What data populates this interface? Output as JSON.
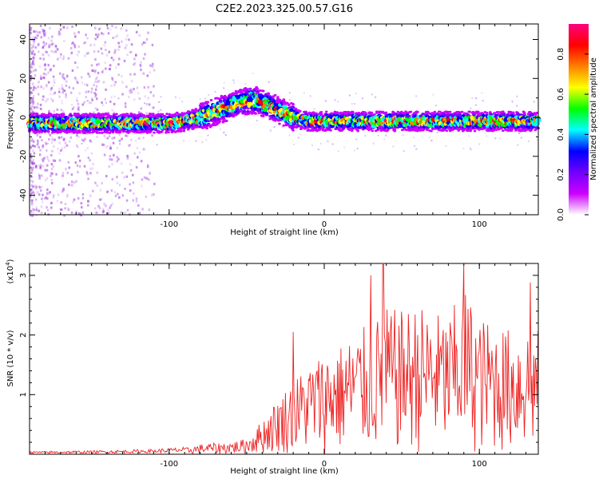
{
  "title": "C2E2.2023.325.00.57.G16",
  "chart_data": [
    {
      "type": "heatmap",
      "xlabel": "Height of straight line (km)",
      "ylabel": "Frequency (Hz)",
      "xlim": [
        -190,
        138
      ],
      "ylim": [
        -50,
        48
      ],
      "xticks": [
        -100,
        0,
        100
      ],
      "yticks": [
        -40,
        -20,
        0,
        20,
        40
      ],
      "colorbar": {
        "label": "Normalized spectral amplitude",
        "range": [
          0,
          0.95
        ],
        "ticks": [
          "0.0",
          "0.2",
          "0.4",
          "0.6",
          "0.8"
        ],
        "tick_values": [
          0.0,
          0.2,
          0.4,
          0.6,
          0.8
        ],
        "colors": [
          "#ffffff",
          "#cc00ff",
          "#7000ff",
          "#0000ff",
          "#00ffff",
          "#00ff00",
          "#ffff00",
          "#ff8000",
          "#ff0000",
          "#ff0080"
        ]
      },
      "ridge": {
        "x": [
          -190,
          -150,
          -120,
          -100,
          -90,
          -80,
          -70,
          -60,
          -52,
          -45,
          -38,
          -30,
          -20,
          -10,
          0,
          20,
          50,
          80,
          110,
          138
        ],
        "y": [
          -3,
          -3,
          -3,
          -3,
          -2,
          0,
          3,
          6,
          8,
          9,
          7,
          4,
          0,
          -2,
          -2,
          -2,
          -2,
          -2,
          -2,
          -2
        ]
      }
    },
    {
      "type": "line",
      "xlabel": "Height of straight line (km)",
      "ylabel": "SNR (10 * v/v)",
      "y_multiplier": "(x10",
      "y_multiplier_exp": "4",
      "y_multiplier_close": ")",
      "xlim": [
        -190,
        138
      ],
      "ylim": [
        0,
        3.2
      ],
      "xticks": [
        -100,
        0,
        100
      ],
      "yticks": [
        1,
        2,
        3
      ],
      "color": "#ee2222",
      "envelope": {
        "x": [
          -190,
          -150,
          -110,
          -90,
          -80,
          -60,
          -50,
          -40,
          -30,
          -20,
          -10,
          0,
          10,
          20,
          30,
          40,
          50,
          60,
          70,
          80,
          90,
          100,
          110,
          120,
          130,
          138
        ],
        "y": [
          0.04,
          0.05,
          0.07,
          0.1,
          0.16,
          0.2,
          0.25,
          0.55,
          0.9,
          1.2,
          1.45,
          1.65,
          1.75,
          1.95,
          2.1,
          2.35,
          2.3,
          2.4,
          2.3,
          2.2,
          2.7,
          2.2,
          2.1,
          2.0,
          2.1,
          2.0
        ]
      },
      "peaks": [
        [
          -20,
          2.05
        ],
        [
          30,
          3.0
        ],
        [
          38,
          3.18
        ],
        [
          90,
          3.18
        ],
        [
          133,
          2.88
        ]
      ]
    }
  ]
}
